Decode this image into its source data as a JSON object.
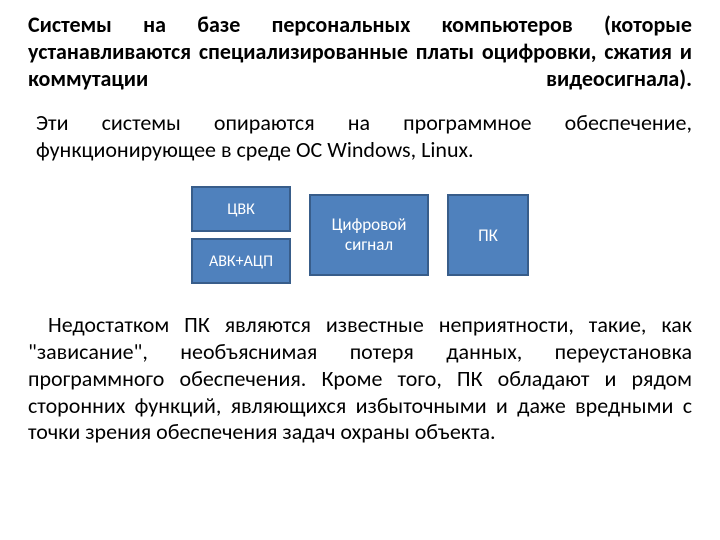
{
  "heading": "Системы на базе персональных компьютеров (которые устанавливаются специализированные платы оцифровки, сжатия и коммутации видеосигнала).",
  "para1": "Эти системы опираются на программное обеспечение, функционирующее в среде ОС Windows, Linux.",
  "diagram": {
    "box1": {
      "label": "ЦВК",
      "fill": "#4f81bd",
      "border": "#385d8a"
    },
    "box2": {
      "label": "АВК+АЦП",
      "fill": "#4f81bd",
      "border": "#385d8a"
    },
    "box3": {
      "label": "Цифровой сигнал",
      "fill": "#4f81bd",
      "border": "#385d8a"
    },
    "box4": {
      "label": "ПК",
      "fill": "#4f81bd",
      "border": "#385d8a"
    }
  },
  "para2": "Недостатком ПК являются известные неприятности, такие, как \"зависание\", необъяснимая потеря данных, переустановка программного обеспечения. Кроме того, ПК обладают и рядом сторонних функций, являющихся избыточными и даже вредными с точки зрения обеспечения задач охраны объекта."
}
